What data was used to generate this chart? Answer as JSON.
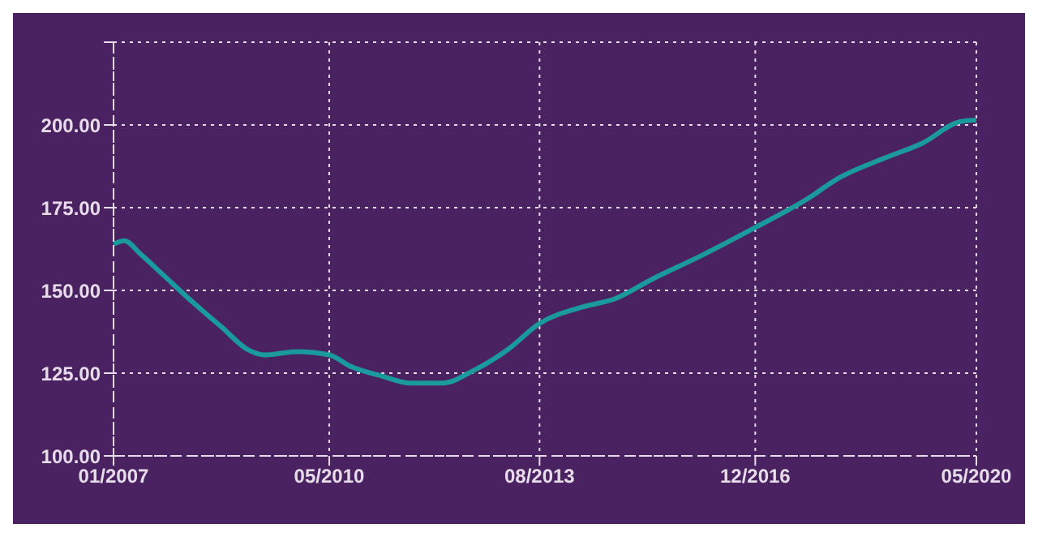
{
  "chart_data": {
    "type": "line",
    "x": [
      "2007-01",
      "2007-03",
      "2007-06",
      "2007-10",
      "2008-04",
      "2008-09",
      "2009-02",
      "2009-05",
      "2009-11",
      "2010-05",
      "2010-09",
      "2011-03",
      "2011-08",
      "2012-02",
      "2012-08",
      "2013-02",
      "2013-08",
      "2014-04",
      "2014-10",
      "2015-05",
      "2016-02",
      "2016-12",
      "2017-10",
      "2018-03",
      "2018-12",
      "2019-07",
      "2020-02",
      "2020-05"
    ],
    "series": [
      {
        "color": "#1a9a9c",
        "values": [
          164,
          165,
          161,
          155,
          146,
          139,
          132,
          130.5,
          131.5,
          130.5,
          127,
          124,
          122,
          122,
          126,
          132,
          140,
          145,
          147.5,
          153.5,
          160.5,
          169,
          178,
          183.5,
          190,
          194.5,
          201,
          201.5
        ]
      }
    ],
    "xlim": [
      "2007-01",
      "2020-05"
    ],
    "xticks": [
      {
        "value": "2007-01",
        "label": "01/2007"
      },
      {
        "value": "2010-05",
        "label": "05/2010"
      },
      {
        "value": "2013-08",
        "label": "08/2013"
      },
      {
        "value": "2016-12",
        "label": "12/2016"
      },
      {
        "value": "2020-05",
        "label": "05/2020"
      }
    ],
    "ylim": [
      100,
      225
    ],
    "yticks": [
      {
        "value": 100,
        "label": "100.00"
      },
      {
        "value": 125,
        "label": "125.00"
      },
      {
        "value": 150,
        "label": "150.00"
      },
      {
        "value": 175,
        "label": "175.00"
      },
      {
        "value": 200,
        "label": "200.00"
      },
      {
        "value": 225,
        "label": null
      }
    ],
    "grid": true,
    "legend": false,
    "marker": "none",
    "line_style": "solid"
  }
}
